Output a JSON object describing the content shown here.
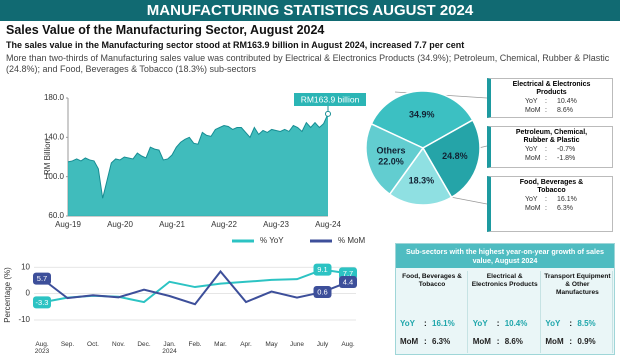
{
  "header": "MANUFACTURING STATISTICS AUGUST 2024",
  "title": "Sales Value of the Manufacturing Sector, August 2024",
  "subtitle": "The sales value in the Manufacturing sector stood at RM163.9 billion in August 2024, increased 7.7 per cent",
  "description": "More than two-thirds of Manufacturing sales value was contributed by Electrical & Electronics Products (34.9%); Petroleum, Chemical, Rubber & Plastic (24.8%); and Food, Beverages & Tobacco (18.3%) sub-sectors",
  "chart_data": [
    {
      "type": "area",
      "y_label": "RM Billion",
      "annotation": "RM163.9 billion",
      "color": "#2bb5b5",
      "categories": [
        "Aug-19",
        null,
        null,
        null,
        null,
        null,
        null,
        null,
        null,
        null,
        null,
        null,
        "Aug-20",
        null,
        null,
        null,
        null,
        null,
        null,
        null,
        null,
        null,
        null,
        null,
        "Aug-21",
        null,
        null,
        null,
        null,
        null,
        null,
        null,
        null,
        null,
        null,
        null,
        "Aug-22",
        null,
        null,
        null,
        null,
        null,
        null,
        null,
        null,
        null,
        null,
        null,
        "Aug-23",
        null,
        null,
        null,
        null,
        null,
        null,
        null,
        null,
        null,
        null,
        null,
        "Aug-24"
      ],
      "values": [
        115,
        116,
        118,
        116,
        119,
        117,
        116,
        108,
        78,
        96,
        114,
        118,
        117,
        120,
        119,
        118,
        124,
        121,
        119,
        130,
        128,
        127,
        117,
        118,
        122,
        130,
        135,
        138,
        140,
        134,
        133,
        145,
        142,
        141,
        148,
        150,
        152,
        151,
        148,
        150,
        150,
        145,
        140,
        150,
        143,
        147,
        145,
        148,
        147,
        146,
        148,
        146,
        152,
        150,
        146,
        155,
        150,
        155,
        150,
        154,
        163.9
      ],
      "ylim": [
        60,
        180
      ],
      "yticks": [
        {
          "value": 60,
          "label": "60.0"
        },
        {
          "value": 100,
          "label": "100.0"
        },
        {
          "value": 140,
          "label": "140.0"
        },
        {
          "value": 180,
          "label": "180.0"
        }
      ],
      "grid": false
    },
    {
      "type": "line",
      "y_label": "Percentage (%)",
      "legend": "top",
      "grid": true,
      "categories": [
        "Aug.\n2023",
        "Sep.",
        "Oct.",
        "Nov.",
        "Dec.",
        "Jan.\n2024",
        "Feb.",
        "Mar.",
        "Apr.",
        "May",
        "June",
        "July",
        "Aug."
      ],
      "series": [
        {
          "name": "% YoY",
          "color": "#2cc3c3",
          "values": [
            -3.3,
            -1.5,
            -0.8,
            -1.2,
            -3.2,
            4.5,
            2.5,
            3.8,
            4.5,
            5.2,
            5.5,
            9.1,
            7.7
          ],
          "value_labels": [
            "-3.3",
            null,
            null,
            null,
            null,
            null,
            null,
            null,
            null,
            null,
            null,
            "9.1",
            "7.7"
          ]
        },
        {
          "name": "% MoM",
          "color": "#3d4f9a",
          "values": [
            5.7,
            -1.7,
            -0.6,
            -1.4,
            1.5,
            -0.9,
            -4.0,
            8.4,
            -3.2,
            0.8,
            -1.5,
            0.6,
            4.4
          ],
          "value_labels": [
            "5.7",
            null,
            null,
            null,
            null,
            null,
            null,
            null,
            null,
            null,
            null,
            "0.6",
            "4.4"
          ]
        }
      ],
      "ylim": [
        -10,
        12
      ],
      "yticks": [
        -10,
        0,
        10
      ]
    },
    {
      "type": "pie",
      "categories": [
        "Electrical & Electronics Products",
        "Petroleum, Chemical, Rubber & Plastic",
        "Food, Beverages & Tobacco",
        "Others"
      ],
      "values": [
        34.9,
        24.8,
        18.3,
        22.0
      ],
      "value_labels": [
        "34.9%",
        "24.8%",
        "18.3%",
        "22.0%"
      ],
      "colors": [
        "#3cc0c2",
        "#25a4a8",
        "#8fe0e2",
        "#62cdd0"
      ],
      "measure_labels": [
        "YoY",
        "MoM"
      ],
      "yoy": [
        "10.4%",
        "-0.7%",
        "16.1%",
        null
      ],
      "mom": [
        "8.6%",
        "-1.8%",
        "6.3%",
        null
      ]
    }
  ],
  "table": {
    "title": "Sub-sectors with the highest year-on-year growth of sales value, August 2024",
    "columns": [
      "Food, Beverages & Tobacco",
      "Electrical & Electronics Products",
      "Transport Equipment & Other Manufactures"
    ],
    "rows": [
      [
        "YoY",
        "16.1%",
        "10.4%",
        "8.5%"
      ],
      [
        "MoM",
        "6.3%",
        "8.6%",
        "0.9%"
      ]
    ]
  }
}
